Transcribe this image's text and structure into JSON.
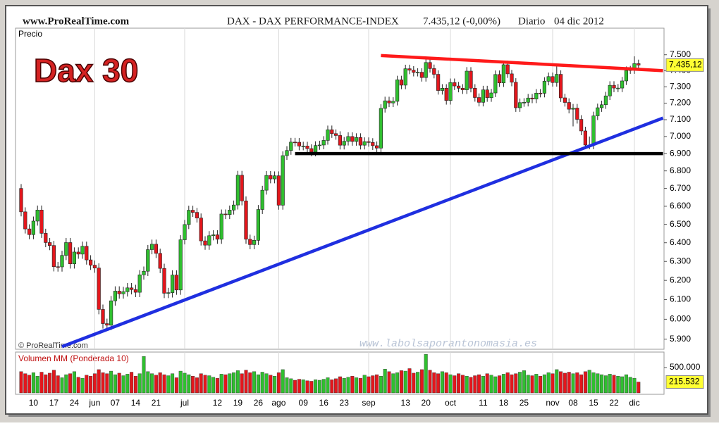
{
  "header": {
    "site": "www.ProRealTime.com",
    "title": "DAX - DAX PERFORMANCE-INDEX",
    "quote": "7.435,12 (-0,00%)",
    "period": "Diario",
    "date": "04 dic 2012"
  },
  "chart_data": [
    {
      "type": "candlestick",
      "label": "Precio",
      "annotation": "Dax 30",
      "copyright": "© ProRealTime.com",
      "watermark": "www.labolsaporantonomasia.es",
      "log_scale": true,
      "ylim": [
        5850,
        7670
      ],
      "yticks": [
        {
          "value": 5900,
          "label": "5.900"
        },
        {
          "value": 6000,
          "label": "6.000"
        },
        {
          "value": 6100,
          "label": "6.100"
        },
        {
          "value": 6200,
          "label": "6.200"
        },
        {
          "value": 6300,
          "label": "6.300"
        },
        {
          "value": 6400,
          "label": "6.400"
        },
        {
          "value": 6500,
          "label": "6.500"
        },
        {
          "value": 6600,
          "label": "6.600"
        },
        {
          "value": 6700,
          "label": "6.700"
        },
        {
          "value": 6800,
          "label": "6.800"
        },
        {
          "value": 6900,
          "label": "6.900"
        },
        {
          "value": 7000,
          "label": "7.000"
        },
        {
          "value": 7100,
          "label": "7.100"
        },
        {
          "value": 7200,
          "label": "7.200"
        },
        {
          "value": 7300,
          "label": "7.300"
        },
        {
          "value": 7400,
          "label": "7.400"
        },
        {
          "value": 7500,
          "label": "7.500"
        }
      ],
      "last_price": {
        "value": 7435.12,
        "label": "7.435,12"
      },
      "up_color": "#2fbf2f",
      "down_color": "#e3161c",
      "xticks": [
        {
          "value": 3,
          "label": "10"
        },
        {
          "value": 8,
          "label": "17"
        },
        {
          "value": 13,
          "label": "24"
        },
        {
          "value": 18,
          "label": "jun"
        },
        {
          "value": 23,
          "label": "07"
        },
        {
          "value": 28,
          "label": "14"
        },
        {
          "value": 33,
          "label": "21"
        },
        {
          "value": 40,
          "label": "jul"
        },
        {
          "value": 48,
          "label": "12"
        },
        {
          "value": 53,
          "label": "19"
        },
        {
          "value": 58,
          "label": "26"
        },
        {
          "value": 63,
          "label": "ago"
        },
        {
          "value": 69,
          "label": "09"
        },
        {
          "value": 74,
          "label": "16"
        },
        {
          "value": 79,
          "label": "23"
        },
        {
          "value": 85,
          "label": "sep"
        },
        {
          "value": 94,
          "label": "13"
        },
        {
          "value": 99,
          "label": "20"
        },
        {
          "value": 105,
          "label": "oct"
        },
        {
          "value": 113,
          "label": "11"
        },
        {
          "value": 118,
          "label": "18"
        },
        {
          "value": 123,
          "label": "25"
        },
        {
          "value": 130,
          "label": "nov"
        },
        {
          "value": 135,
          "label": "08"
        },
        {
          "value": 140,
          "label": "15"
        },
        {
          "value": 145,
          "label": "22"
        },
        {
          "value": 150,
          "label": "dic"
        }
      ],
      "trend_lines": [
        {
          "color": "#ff1a1a",
          "from": [
            88,
            7495
          ],
          "to": [
            157,
            7400
          ]
        },
        {
          "color": "#1f2fe0",
          "from": [
            10,
            5863
          ],
          "to": [
            157,
            7110
          ]
        },
        {
          "color": "#000000",
          "from": [
            67,
            6900
          ],
          "to": [
            157,
            6900
          ]
        }
      ],
      "candles": [
        [
          6700,
          6725,
          6544,
          6569
        ],
        [
          6569,
          6594,
          6450,
          6475
        ],
        [
          6475,
          6500,
          6419,
          6444
        ],
        [
          6444,
          6543,
          6419,
          6518
        ],
        [
          6518,
          6604,
          6493,
          6579
        ],
        [
          6579,
          6604,
          6426,
          6451
        ],
        [
          6451,
          6476,
          6376,
          6401
        ],
        [
          6401,
          6426,
          6360,
          6385
        ],
        [
          6385,
          6410,
          6247,
          6272
        ],
        [
          6272,
          6297,
          6246,
          6271
        ],
        [
          6271,
          6357,
          6246,
          6332
        ],
        [
          6332,
          6426,
          6307,
          6401
        ],
        [
          6401,
          6426,
          6262,
          6287
        ],
        [
          6287,
          6375,
          6262,
          6350
        ],
        [
          6350,
          6375,
          6314,
          6339
        ],
        [
          6339,
          6406,
          6314,
          6381
        ],
        [
          6381,
          6406,
          6283,
          6308
        ],
        [
          6308,
          6333,
          6255,
          6280
        ],
        [
          6280,
          6305,
          6240,
          6265
        ],
        [
          6265,
          6290,
          6025,
          6050
        ],
        [
          6050,
          6075,
          5953,
          5978
        ],
        [
          5978,
          6003,
          5945,
          5970
        ],
        [
          5970,
          6119,
          5945,
          6094
        ],
        [
          6094,
          6169,
          6069,
          6144
        ],
        [
          6144,
          6169,
          6105,
          6130
        ],
        [
          6130,
          6166,
          6105,
          6141
        ],
        [
          6141,
          6186,
          6116,
          6161
        ],
        [
          6161,
          6186,
          6127,
          6152
        ],
        [
          6152,
          6177,
          6113,
          6138
        ],
        [
          6138,
          6254,
          6113,
          6229
        ],
        [
          6229,
          6273,
          6204,
          6248
        ],
        [
          6248,
          6388,
          6223,
          6363
        ],
        [
          6363,
          6417,
          6338,
          6392
        ],
        [
          6392,
          6417,
          6318,
          6343
        ],
        [
          6343,
          6368,
          6238,
          6263
        ],
        [
          6263,
          6288,
          6108,
          6133
        ],
        [
          6133,
          6161,
          6108,
          6136
        ],
        [
          6136,
          6253,
          6111,
          6228
        ],
        [
          6228,
          6253,
          6125,
          6150
        ],
        [
          6150,
          6441,
          6125,
          6416
        ],
        [
          6416,
          6524,
          6391,
          6499
        ],
        [
          6499,
          6603,
          6474,
          6578
        ],
        [
          6578,
          6603,
          6541,
          6566
        ],
        [
          6566,
          6591,
          6510,
          6535
        ],
        [
          6535,
          6560,
          6385,
          6410
        ],
        [
          6410,
          6435,
          6362,
          6387
        ],
        [
          6387,
          6463,
          6362,
          6438
        ],
        [
          6438,
          6468,
          6413,
          6443
        ],
        [
          6443,
          6468,
          6394,
          6419
        ],
        [
          6419,
          6582,
          6394,
          6557
        ],
        [
          6557,
          6582,
          6529,
          6554
        ],
        [
          6554,
          6604,
          6529,
          6579
        ],
        [
          6579,
          6632,
          6554,
          6607
        ],
        [
          6607,
          6800,
          6582,
          6775
        ],
        [
          6775,
          6800,
          6605,
          6630
        ],
        [
          6630,
          6655,
          6394,
          6419
        ],
        [
          6419,
          6444,
          6365,
          6390
        ],
        [
          6390,
          6438,
          6365,
          6413
        ],
        [
          6413,
          6607,
          6388,
          6582
        ],
        [
          6582,
          6715,
          6557,
          6690
        ],
        [
          6690,
          6799,
          6665,
          6774
        ],
        [
          6774,
          6799,
          6729,
          6754
        ],
        [
          6754,
          6797,
          6729,
          6772
        ],
        [
          6772,
          6797,
          6581,
          6606
        ],
        [
          6606,
          6913,
          6581,
          6888
        ],
        [
          6888,
          6943,
          6863,
          6918
        ],
        [
          6918,
          6992,
          6893,
          6967
        ],
        [
          6967,
          6992,
          6941,
          6966
        ],
        [
          6966,
          6991,
          6919,
          6944
        ],
        [
          6944,
          6969,
          6919,
          6944
        ],
        [
          6944,
          6969,
          6904,
          6929
        ],
        [
          6929,
          6954,
          6884,
          6909
        ],
        [
          6909,
          6972,
          6884,
          6947
        ],
        [
          6947,
          6975,
          6922,
          6950
        ],
        [
          6950,
          7002,
          6925,
          6977
        ],
        [
          6977,
          7065,
          6952,
          7040
        ],
        [
          7040,
          7065,
          6992,
          7017
        ],
        [
          7017,
          7042,
          6981,
          7006
        ],
        [
          7006,
          7031,
          6924,
          6949
        ],
        [
          6949,
          6997,
          6924,
          6972
        ],
        [
          6972,
          7025,
          6947,
          7000
        ],
        [
          7000,
          7025,
          6946,
          6971
        ],
        [
          6971,
          7019,
          6946,
          6994
        ],
        [
          6994,
          7019,
          6924,
          6949
        ],
        [
          6949,
          6995,
          6924,
          6970
        ],
        [
          6970,
          6995,
          6940,
          6965
        ],
        [
          6965,
          6990,
          6921,
          6946
        ],
        [
          6946,
          6971,
          6907,
          6932
        ],
        [
          6932,
          7193,
          6907,
          7168
        ],
        [
          7168,
          7239,
          7143,
          7214
        ],
        [
          7214,
          7239,
          7176,
          7201
        ],
        [
          7201,
          7236,
          7176,
          7211
        ],
        [
          7211,
          7368,
          7186,
          7343
        ],
        [
          7343,
          7368,
          7285,
          7310
        ],
        [
          7310,
          7437,
          7285,
          7412
        ],
        [
          7412,
          7437,
          7378,
          7403
        ],
        [
          7403,
          7428,
          7364,
          7389
        ],
        [
          7389,
          7415,
          7364,
          7390
        ],
        [
          7390,
          7415,
          7332,
          7357
        ],
        [
          7357,
          7476,
          7332,
          7451
        ],
        [
          7451,
          7476,
          7388,
          7413
        ],
        [
          7413,
          7438,
          7352,
          7377
        ],
        [
          7377,
          7402,
          7252,
          7277
        ],
        [
          7277,
          7316,
          7252,
          7291
        ],
        [
          7291,
          7316,
          7191,
          7216
        ],
        [
          7216,
          7351,
          7191,
          7326
        ],
        [
          7326,
          7351,
          7280,
          7305
        ],
        [
          7305,
          7330,
          7266,
          7291
        ],
        [
          7291,
          7316,
          7256,
          7281
        ],
        [
          7281,
          7422,
          7256,
          7397
        ],
        [
          7397,
          7422,
          7266,
          7291
        ],
        [
          7291,
          7316,
          7209,
          7234
        ],
        [
          7234,
          7259,
          7180,
          7205
        ],
        [
          7205,
          7306,
          7180,
          7281
        ],
        [
          7281,
          7306,
          7208,
          7233
        ],
        [
          7233,
          7287,
          7208,
          7262
        ],
        [
          7262,
          7401,
          7237,
          7376
        ],
        [
          7376,
          7401,
          7299,
          7324
        ],
        [
          7324,
          7462,
          7299,
          7437
        ],
        [
          7437,
          7462,
          7355,
          7380
        ],
        [
          7380,
          7405,
          7303,
          7328
        ],
        [
          7328,
          7353,
          7147,
          7172
        ],
        [
          7172,
          7228,
          7147,
          7203
        ],
        [
          7203,
          7230,
          7178,
          7205
        ],
        [
          7205,
          7256,
          7180,
          7231
        ],
        [
          7231,
          7256,
          7200,
          7225
        ],
        [
          7225,
          7286,
          7200,
          7261
        ],
        [
          7261,
          7286,
          7235,
          7260
        ],
        [
          7260,
          7359,
          7235,
          7334
        ],
        [
          7334,
          7388,
          7309,
          7363
        ],
        [
          7363,
          7388,
          7301,
          7326
        ],
        [
          7326,
          7430,
          7301,
          7377
        ],
        [
          7377,
          7402,
          7207,
          7232
        ],
        [
          7232,
          7257,
          7179,
          7204
        ],
        [
          7204,
          7229,
          7138,
          7163
        ],
        [
          7163,
          7195,
          7060,
          7170
        ],
        [
          7170,
          7195,
          7077,
          7102
        ],
        [
          7102,
          7127,
          7008,
          7033
        ],
        [
          7033,
          7058,
          6925,
          6950
        ],
        [
          6950,
          7000,
          6925,
          6950
        ],
        [
          6950,
          7148,
          6925,
          7123
        ],
        [
          7123,
          7197,
          7098,
          7172
        ],
        [
          7172,
          7215,
          7147,
          7190
        ],
        [
          7190,
          7269,
          7165,
          7244
        ],
        [
          7244,
          7334,
          7219,
          7309
        ],
        [
          7309,
          7334,
          7267,
          7292
        ],
        [
          7292,
          7317,
          7267,
          7292
        ],
        [
          7292,
          7361,
          7267,
          7336
        ],
        [
          7336,
          7426,
          7311,
          7401
        ],
        [
          7401,
          7430,
          7380,
          7405
        ],
        [
          7405,
          7490,
          7380,
          7444
        ],
        [
          7444,
          7469,
          7410,
          7435
        ]
      ]
    },
    {
      "type": "bar",
      "label": "Volumen MM (Ponderada 10)",
      "ylim": [
        0,
        764000
      ],
      "yticks": [
        {
          "value": 500000,
          "label": "500.000"
        }
      ],
      "last_value": {
        "value": 215532,
        "label": "215.532"
      },
      "values": [
        420000,
        380000,
        350000,
        400000,
        330000,
        410000,
        360000,
        390000,
        450000,
        340000,
        300000,
        360000,
        380000,
        420000,
        310000,
        290000,
        350000,
        330000,
        380000,
        460000,
        400000,
        380000,
        430000,
        360000,
        390000,
        340000,
        370000,
        410000,
        330000,
        380000,
        720000,
        420000,
        380000,
        350000,
        400000,
        360000,
        340000,
        380000,
        300000,
        430000,
        390000,
        360000,
        330000,
        300000,
        380000,
        350000,
        340000,
        310000,
        290000,
        370000,
        360000,
        380000,
        400000,
        440000,
        380000,
        450000,
        400000,
        420000,
        360000,
        410000,
        380000,
        350000,
        330000,
        400000,
        460000,
        300000,
        280000,
        250000,
        270000,
        260000,
        240000,
        230000,
        260000,
        250000,
        270000,
        300000,
        260000,
        280000,
        320000,
        290000,
        310000,
        330000,
        300000,
        290000,
        350000,
        320000,
        340000,
        360000,
        330000,
        470000,
        420000,
        380000,
        400000,
        440000,
        430000,
        480000,
        390000,
        410000,
        460000,
        760000,
        450000,
        400000,
        380000,
        420000,
        400000,
        360000,
        340000,
        380000,
        350000,
        330000,
        310000,
        340000,
        360000,
        330000,
        380000,
        350000,
        320000,
        340000,
        370000,
        400000,
        360000,
        380000,
        410000,
        440000,
        350000,
        340000,
        370000,
        330000,
        360000,
        400000,
        380000,
        460000,
        420000,
        390000,
        410000,
        380000,
        400000,
        360000,
        420000,
        450000,
        400000,
        380000,
        360000,
        340000,
        370000,
        350000,
        330000,
        320000,
        360000,
        310000,
        290000,
        215532
      ]
    }
  ]
}
